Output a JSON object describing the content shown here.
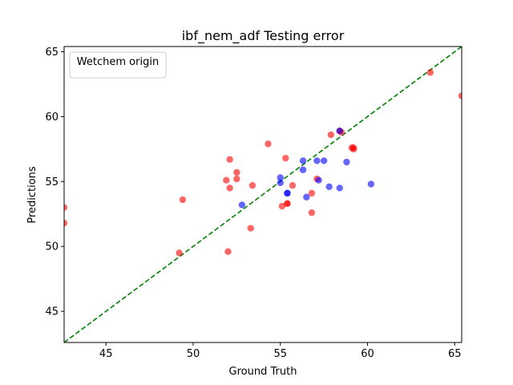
{
  "chart_data": {
    "type": "scatter",
    "title": "ibf_nem_adf Testing error",
    "xlabel": "Ground Truth",
    "ylabel": "Predictions",
    "xlim": [
      42.6,
      65.4
    ],
    "ylim": [
      42.6,
      65.4
    ],
    "xticks": [
      45,
      50,
      55,
      60,
      65
    ],
    "yticks": [
      45,
      50,
      55,
      60,
      65
    ],
    "grid": false,
    "legend": {
      "title": "Wetchem origin",
      "placement": "top-left"
    },
    "reference_line": {
      "type": "identity",
      "color": "#008000",
      "style": "dashed"
    },
    "series": [
      {
        "color": "#ff0000",
        "points": [
          [
            42.6,
            53.0
          ],
          [
            42.6,
            51.8
          ],
          [
            49.2,
            49.5
          ],
          [
            49.4,
            53.6
          ],
          [
            51.9,
            55.1
          ],
          [
            52.0,
            49.6
          ],
          [
            52.1,
            56.7
          ],
          [
            52.1,
            54.5
          ],
          [
            52.5,
            55.7
          ],
          [
            52.5,
            55.2
          ],
          [
            53.3,
            51.4
          ],
          [
            53.4,
            54.7
          ],
          [
            54.3,
            57.9
          ],
          [
            55.1,
            53.1
          ],
          [
            55.3,
            56.8
          ],
          [
            55.4,
            53.3
          ],
          [
            55.4,
            53.3
          ],
          [
            55.7,
            54.7
          ],
          [
            56.8,
            52.6
          ],
          [
            56.8,
            54.1
          ],
          [
            57.1,
            55.2
          ],
          [
            57.9,
            58.6
          ],
          [
            58.4,
            58.9
          ],
          [
            58.5,
            58.8
          ],
          [
            59.1,
            57.6
          ],
          [
            59.2,
            57.5
          ],
          [
            59.2,
            57.6
          ],
          [
            63.6,
            63.4
          ],
          [
            65.4,
            61.6
          ]
        ]
      },
      {
        "color": "#0000ff",
        "points": [
          [
            52.8,
            53.2
          ],
          [
            55.0,
            55.3
          ],
          [
            55.0,
            54.9
          ],
          [
            55.4,
            54.1
          ],
          [
            55.4,
            54.1
          ],
          [
            56.3,
            56.6
          ],
          [
            56.3,
            55.9
          ],
          [
            56.5,
            53.8
          ],
          [
            57.1,
            56.6
          ],
          [
            57.2,
            55.1
          ],
          [
            57.5,
            56.6
          ],
          [
            57.8,
            54.6
          ],
          [
            58.4,
            58.9
          ],
          [
            58.4,
            54.5
          ],
          [
            58.8,
            56.5
          ],
          [
            60.2,
            54.8
          ]
        ]
      }
    ]
  }
}
